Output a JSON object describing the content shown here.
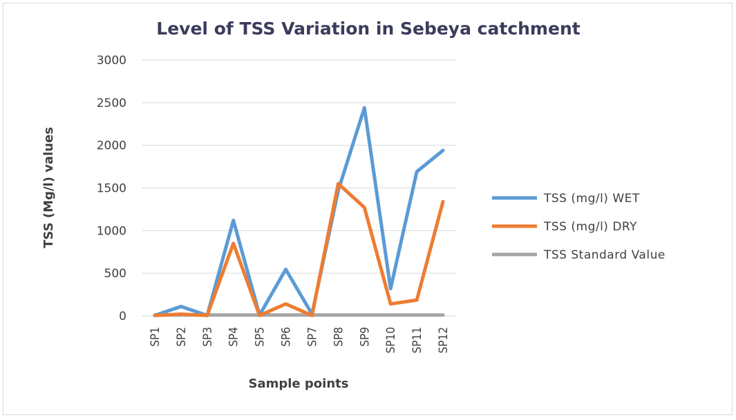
{
  "chart_data": {
    "type": "line",
    "title": "Level of TSS Variation in Sebeya catchment",
    "xlabel": "Sample points",
    "ylabel": "TSS (Mg/l) values",
    "categories": [
      "SP1",
      "SP2",
      "SP3",
      "SP4",
      "SP5",
      "SP6",
      "SP7",
      "SP8",
      "SP9",
      "SP10",
      "SP11",
      "SP12"
    ],
    "ylim": [
      0,
      3000
    ],
    "yticks": [
      0,
      500,
      1000,
      1500,
      2000,
      2500,
      3000
    ],
    "grid": true,
    "legend_position": "right",
    "series": [
      {
        "name": "TSS (mg/l) WET",
        "color": "#5b9bd5",
        "values": [
          5,
          110,
          5,
          1120,
          10,
          545,
          20,
          1470,
          2440,
          320,
          1690,
          1940
        ]
      },
      {
        "name": "TSS (mg/l) DRY",
        "color": "#ed7d31",
        "values": [
          5,
          20,
          5,
          850,
          5,
          140,
          5,
          1550,
          1270,
          140,
          185,
          1340
        ]
      },
      {
        "name": "TSS Standard Value",
        "color": "#a5a5a5",
        "values": [
          10,
          10,
          10,
          10,
          10,
          10,
          10,
          10,
          10,
          10,
          10,
          10
        ]
      }
    ]
  }
}
